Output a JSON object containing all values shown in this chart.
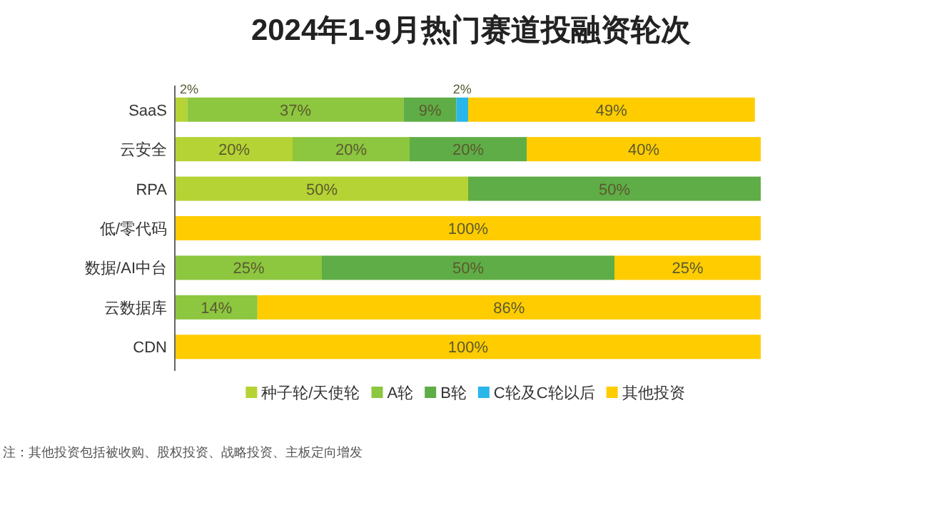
{
  "chart_data": {
    "type": "bar",
    "orientation": "horizontal",
    "stacked": true,
    "title": "2024年1-9月热门赛道投融资轮次",
    "categories": [
      "SaaS",
      "云安全",
      "RPA",
      "低/零代码",
      "数据/AI中台",
      "云数据库",
      "CDN"
    ],
    "series": [
      {
        "name": "种子轮/天使轮",
        "color": "#b5d334",
        "values": [
          2,
          20,
          50,
          0,
          0,
          0,
          0
        ],
        "value_labels": [
          "2%",
          "20%",
          "50%",
          null,
          null,
          null,
          null
        ]
      },
      {
        "name": "A轮",
        "color": "#8dc63f",
        "values": [
          37,
          20,
          0,
          0,
          25,
          14,
          0
        ],
        "value_labels": [
          "37%",
          "20%",
          null,
          null,
          "25%",
          "14%",
          null
        ]
      },
      {
        "name": "B轮",
        "color": "#5fad46",
        "values": [
          9,
          20,
          50,
          0,
          50,
          0,
          0
        ],
        "value_labels": [
          "9%",
          "20%",
          "50%",
          null,
          "50%",
          null,
          null
        ]
      },
      {
        "name": "C轮及C轮以后",
        "color": "#29b6e8",
        "values": [
          2,
          0,
          0,
          0,
          0,
          0,
          0
        ],
        "value_labels": [
          "2%",
          null,
          null,
          null,
          null,
          null,
          null
        ]
      },
      {
        "name": "其他投资",
        "color": "#ffcc00",
        "values": [
          49,
          40,
          0,
          100,
          25,
          86,
          100
        ],
        "value_labels": [
          "49%",
          "40%",
          null,
          "100%",
          "25%",
          "86%",
          "100%"
        ]
      }
    ],
    "legend": "bottom",
    "annotations": [
      "注：其他投资包括被收购、股权投资、战略投资、主板定向增发"
    ]
  }
}
